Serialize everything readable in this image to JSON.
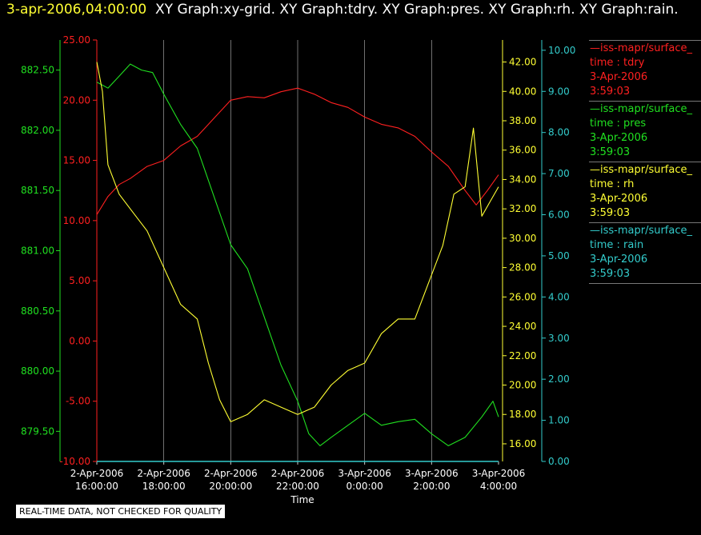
{
  "header": {
    "timestamp": "3-apr-2006,04:00:00",
    "graphs": "XY Graph:xy-grid.  XY Graph:tdry.  XY Graph:pres.  XY Graph:rh.  XY Graph:rain."
  },
  "footer_note": "REAL-TIME DATA, NOT CHECKED FOR QUALITY",
  "colors": {
    "tdry": "#ff2020",
    "pres": "#20e020",
    "rh": "#ffff33",
    "rain": "#33cccc",
    "grid": "#bbbbbb"
  },
  "legend": [
    {
      "id": "tdry",
      "source": "—iss-mapr/surface_",
      "field": "time : tdry",
      "date": "3-Apr-2006",
      "time": "3:59:03",
      "color": "#ff2020"
    },
    {
      "id": "pres",
      "source": "—iss-mapr/surface_",
      "field": "time : pres",
      "date": "3-Apr-2006",
      "time": "3:59:03",
      "color": "#20e020"
    },
    {
      "id": "rh",
      "source": "—iss-mapr/surface_",
      "field": "time : rh",
      "date": "3-Apr-2006",
      "time": "3:59:03",
      "color": "#ffff33"
    },
    {
      "id": "rain",
      "source": "—iss-mapr/surface_",
      "field": "time : rain",
      "date": "3-Apr-2006",
      "time": "3:59:03",
      "color": "#33cccc"
    }
  ],
  "chart_data": {
    "type": "line",
    "xlabel": "Time",
    "x_ticks": [
      {
        "t": 16,
        "date": "2-Apr-2006",
        "time": "16:00:00"
      },
      {
        "t": 18,
        "date": "2-Apr-2006",
        "time": "18:00:00"
      },
      {
        "t": 20,
        "date": "2-Apr-2006",
        "time": "20:00:00"
      },
      {
        "t": 22,
        "date": "2-Apr-2006",
        "time": "22:00:00"
      },
      {
        "t": 24,
        "date": "3-Apr-2006",
        "time": "0:00:00"
      },
      {
        "t": 26,
        "date": "3-Apr-2006",
        "time": "2:00:00"
      },
      {
        "t": 28,
        "date": "3-Apr-2006",
        "time": "4:00:00"
      }
    ],
    "xlim": [
      "2-Apr-2006 16:00:00",
      "3-Apr-2006 4:00:00"
    ],
    "grid": "vertical",
    "axes": {
      "tdry": {
        "side": "left-outer",
        "ylim": [
          -10,
          25
        ],
        "ticks": [
          "25.00",
          "20.00",
          "15.00",
          "10.00",
          "5.00",
          "0.00",
          "-5.00",
          "-10.00"
        ]
      },
      "pres": {
        "side": "left",
        "ylim": [
          879.25,
          882.75
        ],
        "ticks": [
          "882.50",
          "882.00",
          "881.50",
          "881.00",
          "880.50",
          "880.00",
          "879.50"
        ]
      },
      "rh": {
        "side": "right",
        "ylim": [
          14.8,
          43.5
        ],
        "ticks": [
          "42.00",
          "40.00",
          "38.00",
          "36.00",
          "34.00",
          "32.00",
          "30.00",
          "28.00",
          "26.00",
          "24.00",
          "22.00",
          "20.00",
          "18.00",
          "16.00"
        ]
      },
      "rain": {
        "side": "right-outer",
        "ylim": [
          0,
          10.25
        ],
        "ticks": [
          "10.00",
          "9.00",
          "8.00",
          "7.00",
          "6.00",
          "5.00",
          "4.00",
          "3.00",
          "2.00",
          "1.00",
          "0.00"
        ]
      }
    },
    "series": [
      {
        "id": "tdry",
        "axis": "tdry",
        "x": [
          "2-Apr-2006 16:00",
          "2-Apr-2006 16:20",
          "2-Apr-2006 16:40",
          "2-Apr-2006 17:00",
          "2-Apr-2006 17:30",
          "2-Apr-2006 18:00",
          "2-Apr-2006 18:30",
          "2-Apr-2006 19:00",
          "2-Apr-2006 19:30",
          "2-Apr-2006 20:00",
          "2-Apr-2006 20:30",
          "2-Apr-2006 21:00",
          "2-Apr-2006 21:30",
          "2-Apr-2006 22:00",
          "2-Apr-2006 22:30",
          "2-Apr-2006 23:00",
          "2-Apr-2006 23:30",
          "3-Apr-2006 0:00",
          "3-Apr-2006 0:30",
          "3-Apr-2006 1:00",
          "3-Apr-2006 1:30",
          "3-Apr-2006 2:00",
          "3-Apr-2006 2:30",
          "3-Apr-2006 3:00",
          "3-Apr-2006 3:20",
          "3-Apr-2006 3:40",
          "3-Apr-2006 4:00"
        ],
        "values": [
          10.5,
          12.0,
          13.0,
          13.5,
          14.5,
          15.0,
          16.2,
          17.0,
          18.5,
          20.0,
          20.3,
          20.2,
          20.7,
          21.0,
          20.5,
          19.8,
          19.4,
          18.6,
          18.0,
          17.7,
          17.0,
          15.7,
          14.5,
          12.5,
          11.3,
          12.5,
          13.8
        ]
      },
      {
        "id": "pres",
        "axis": "pres",
        "x": [
          "2-Apr-2006 16:00",
          "2-Apr-2006 16:20",
          "2-Apr-2006 16:40",
          "2-Apr-2006 17:00",
          "2-Apr-2006 17:20",
          "2-Apr-2006 17:40",
          "2-Apr-2006 18:00",
          "2-Apr-2006 18:30",
          "2-Apr-2006 19:00",
          "2-Apr-2006 19:30",
          "2-Apr-2006 20:00",
          "2-Apr-2006 20:30",
          "2-Apr-2006 21:00",
          "2-Apr-2006 21:30",
          "2-Apr-2006 22:00",
          "2-Apr-2006 22:20",
          "2-Apr-2006 22:40",
          "2-Apr-2006 23:00",
          "2-Apr-2006 23:30",
          "3-Apr-2006 0:00",
          "3-Apr-2006 0:30",
          "3-Apr-2006 1:00",
          "3-Apr-2006 1:30",
          "3-Apr-2006 2:00",
          "3-Apr-2006 2:30",
          "3-Apr-2006 3:00",
          "3-Apr-2006 3:30",
          "3-Apr-2006 3:50",
          "3-Apr-2006 4:00"
        ],
        "values": [
          882.4,
          882.35,
          882.45,
          882.55,
          882.5,
          882.48,
          882.3,
          882.05,
          881.85,
          881.45,
          881.05,
          880.85,
          880.45,
          880.05,
          879.75,
          879.48,
          879.38,
          879.45,
          879.55,
          879.65,
          879.55,
          879.58,
          879.6,
          879.48,
          879.38,
          879.45,
          879.62,
          879.75,
          879.62
        ]
      },
      {
        "id": "rh",
        "axis": "rh",
        "x": [
          "2-Apr-2006 16:00",
          "2-Apr-2006 16:10",
          "2-Apr-2006 16:20",
          "2-Apr-2006 16:40",
          "2-Apr-2006 17:00",
          "2-Apr-2006 17:30",
          "2-Apr-2006 18:00",
          "2-Apr-2006 18:30",
          "2-Apr-2006 19:00",
          "2-Apr-2006 19:20",
          "2-Apr-2006 19:40",
          "2-Apr-2006 20:00",
          "2-Apr-2006 20:30",
          "2-Apr-2006 21:00",
          "2-Apr-2006 21:30",
          "2-Apr-2006 22:00",
          "2-Apr-2006 22:30",
          "2-Apr-2006 23:00",
          "2-Apr-2006 23:30",
          "3-Apr-2006 0:00",
          "3-Apr-2006 0:30",
          "3-Apr-2006 1:00",
          "3-Apr-2006 1:30",
          "3-Apr-2006 2:00",
          "3-Apr-2006 2:20",
          "3-Apr-2006 2:40",
          "3-Apr-2006 3:00",
          "3-Apr-2006 3:15",
          "3-Apr-2006 3:30",
          "3-Apr-2006 3:45",
          "3-Apr-2006 4:00"
        ],
        "values": [
          42.0,
          40.0,
          35.0,
          33.0,
          32.0,
          30.5,
          28.0,
          25.5,
          24.5,
          21.5,
          19.0,
          17.5,
          18.0,
          19.0,
          18.5,
          18.0,
          18.5,
          20.0,
          21.0,
          21.5,
          23.5,
          24.5,
          24.5,
          27.5,
          29.5,
          33.0,
          33.5,
          37.5,
          31.5,
          32.5,
          33.5
        ]
      },
      {
        "id": "rain",
        "axis": "rain",
        "x": [
          "2-Apr-2006 16:00",
          "3-Apr-2006 4:00"
        ],
        "values": [
          0,
          0
        ]
      }
    ]
  }
}
